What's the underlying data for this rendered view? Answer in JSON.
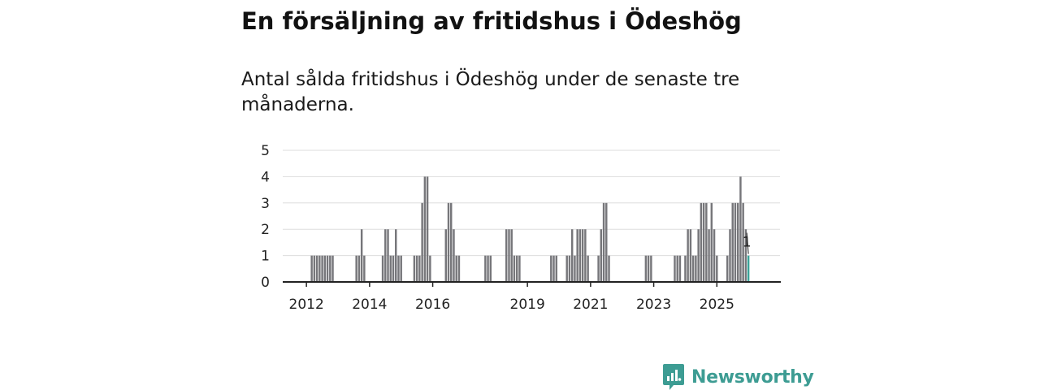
{
  "header": {
    "title": "En försäljning av fritidshus i Ödeshög",
    "subtitle": "Antal sålda fritidshus i Ödeshög under de senaste tre månaderna."
  },
  "brand": {
    "name": "Newsworthy",
    "color": "#3d9c93"
  },
  "colors": {
    "bar": "#76767a",
    "highlight": "#3aa398",
    "grid": "#dddddd",
    "axis": "#222222"
  },
  "chart_data": {
    "type": "bar",
    "title": "Antal sålda fritidshus i Ödeshög under de senaste tre månaderna.",
    "xlabel": "",
    "ylabel": "",
    "ylim": [
      0,
      5
    ],
    "yticks": [
      0,
      1,
      2,
      3,
      4,
      5
    ],
    "xticks": [
      {
        "label": "2012",
        "t": 2012.0
      },
      {
        "label": "2014",
        "t": 2014.0
      },
      {
        "label": "2016",
        "t": 2016.0
      },
      {
        "label": "2019",
        "t": 2019.0
      },
      {
        "label": "2021",
        "t": 2021.0
      },
      {
        "label": "2023",
        "t": 2023.0
      },
      {
        "label": "2025",
        "t": 2025.0
      }
    ],
    "grid": true,
    "x_range": [
      2011.25,
      2027.0
    ],
    "bar_width_months": 0.75,
    "bars": [
      {
        "t": 2012.167,
        "v": 1
      },
      {
        "t": 2012.25,
        "v": 1
      },
      {
        "t": 2012.333,
        "v": 1
      },
      {
        "t": 2012.417,
        "v": 1
      },
      {
        "t": 2012.5,
        "v": 1
      },
      {
        "t": 2012.583,
        "v": 1
      },
      {
        "t": 2012.667,
        "v": 1
      },
      {
        "t": 2012.75,
        "v": 1
      },
      {
        "t": 2012.833,
        "v": 1
      },
      {
        "t": 2013.583,
        "v": 1
      },
      {
        "t": 2013.667,
        "v": 1
      },
      {
        "t": 2013.75,
        "v": 2
      },
      {
        "t": 2013.833,
        "v": 1
      },
      {
        "t": 2014.417,
        "v": 1
      },
      {
        "t": 2014.5,
        "v": 2
      },
      {
        "t": 2014.583,
        "v": 2
      },
      {
        "t": 2014.667,
        "v": 1
      },
      {
        "t": 2014.75,
        "v": 1
      },
      {
        "t": 2014.833,
        "v": 2
      },
      {
        "t": 2014.917,
        "v": 1
      },
      {
        "t": 2015.0,
        "v": 1
      },
      {
        "t": 2015.417,
        "v": 1
      },
      {
        "t": 2015.5,
        "v": 1
      },
      {
        "t": 2015.583,
        "v": 1
      },
      {
        "t": 2015.667,
        "v": 3
      },
      {
        "t": 2015.75,
        "v": 4
      },
      {
        "t": 2015.833,
        "v": 4
      },
      {
        "t": 2015.917,
        "v": 1
      },
      {
        "t": 2016.417,
        "v": 2
      },
      {
        "t": 2016.5,
        "v": 3
      },
      {
        "t": 2016.583,
        "v": 3
      },
      {
        "t": 2016.667,
        "v": 2
      },
      {
        "t": 2016.75,
        "v": 1
      },
      {
        "t": 2016.833,
        "v": 1
      },
      {
        "t": 2017.667,
        "v": 1
      },
      {
        "t": 2017.75,
        "v": 1
      },
      {
        "t": 2017.833,
        "v": 1
      },
      {
        "t": 2018.333,
        "v": 2
      },
      {
        "t": 2018.417,
        "v": 2
      },
      {
        "t": 2018.5,
        "v": 2
      },
      {
        "t": 2018.583,
        "v": 1
      },
      {
        "t": 2018.667,
        "v": 1
      },
      {
        "t": 2018.75,
        "v": 1
      },
      {
        "t": 2019.75,
        "v": 1
      },
      {
        "t": 2019.833,
        "v": 1
      },
      {
        "t": 2019.917,
        "v": 1
      },
      {
        "t": 2020.25,
        "v": 1
      },
      {
        "t": 2020.333,
        "v": 1
      },
      {
        "t": 2020.417,
        "v": 2
      },
      {
        "t": 2020.5,
        "v": 1
      },
      {
        "t": 2020.583,
        "v": 2
      },
      {
        "t": 2020.667,
        "v": 2
      },
      {
        "t": 2020.75,
        "v": 2
      },
      {
        "t": 2020.833,
        "v": 2
      },
      {
        "t": 2020.917,
        "v": 1
      },
      {
        "t": 2021.25,
        "v": 1
      },
      {
        "t": 2021.333,
        "v": 2
      },
      {
        "t": 2021.417,
        "v": 3
      },
      {
        "t": 2021.5,
        "v": 3
      },
      {
        "t": 2021.583,
        "v": 1
      },
      {
        "t": 2022.75,
        "v": 1
      },
      {
        "t": 2022.833,
        "v": 1
      },
      {
        "t": 2022.917,
        "v": 1
      },
      {
        "t": 2023.667,
        "v": 1
      },
      {
        "t": 2023.75,
        "v": 1
      },
      {
        "t": 2023.833,
        "v": 1
      },
      {
        "t": 2024.0,
        "v": 1
      },
      {
        "t": 2024.083,
        "v": 2
      },
      {
        "t": 2024.167,
        "v": 2
      },
      {
        "t": 2024.25,
        "v": 1
      },
      {
        "t": 2024.333,
        "v": 1
      },
      {
        "t": 2024.417,
        "v": 2
      },
      {
        "t": 2024.5,
        "v": 3
      },
      {
        "t": 2024.583,
        "v": 3
      },
      {
        "t": 2024.667,
        "v": 3
      },
      {
        "t": 2024.75,
        "v": 2
      },
      {
        "t": 2024.833,
        "v": 3
      },
      {
        "t": 2024.917,
        "v": 2
      },
      {
        "t": 2025.0,
        "v": 1
      },
      {
        "t": 2025.333,
        "v": 1
      },
      {
        "t": 2025.417,
        "v": 2
      },
      {
        "t": 2025.5,
        "v": 3
      },
      {
        "t": 2025.583,
        "v": 3
      },
      {
        "t": 2025.667,
        "v": 3
      },
      {
        "t": 2025.75,
        "v": 4
      },
      {
        "t": 2025.833,
        "v": 3
      },
      {
        "t": 2025.917,
        "v": 2
      },
      {
        "t": 2026.0,
        "v": 1
      }
    ],
    "highlight": {
      "t": 2026.0,
      "v": 1,
      "label": "1"
    }
  }
}
